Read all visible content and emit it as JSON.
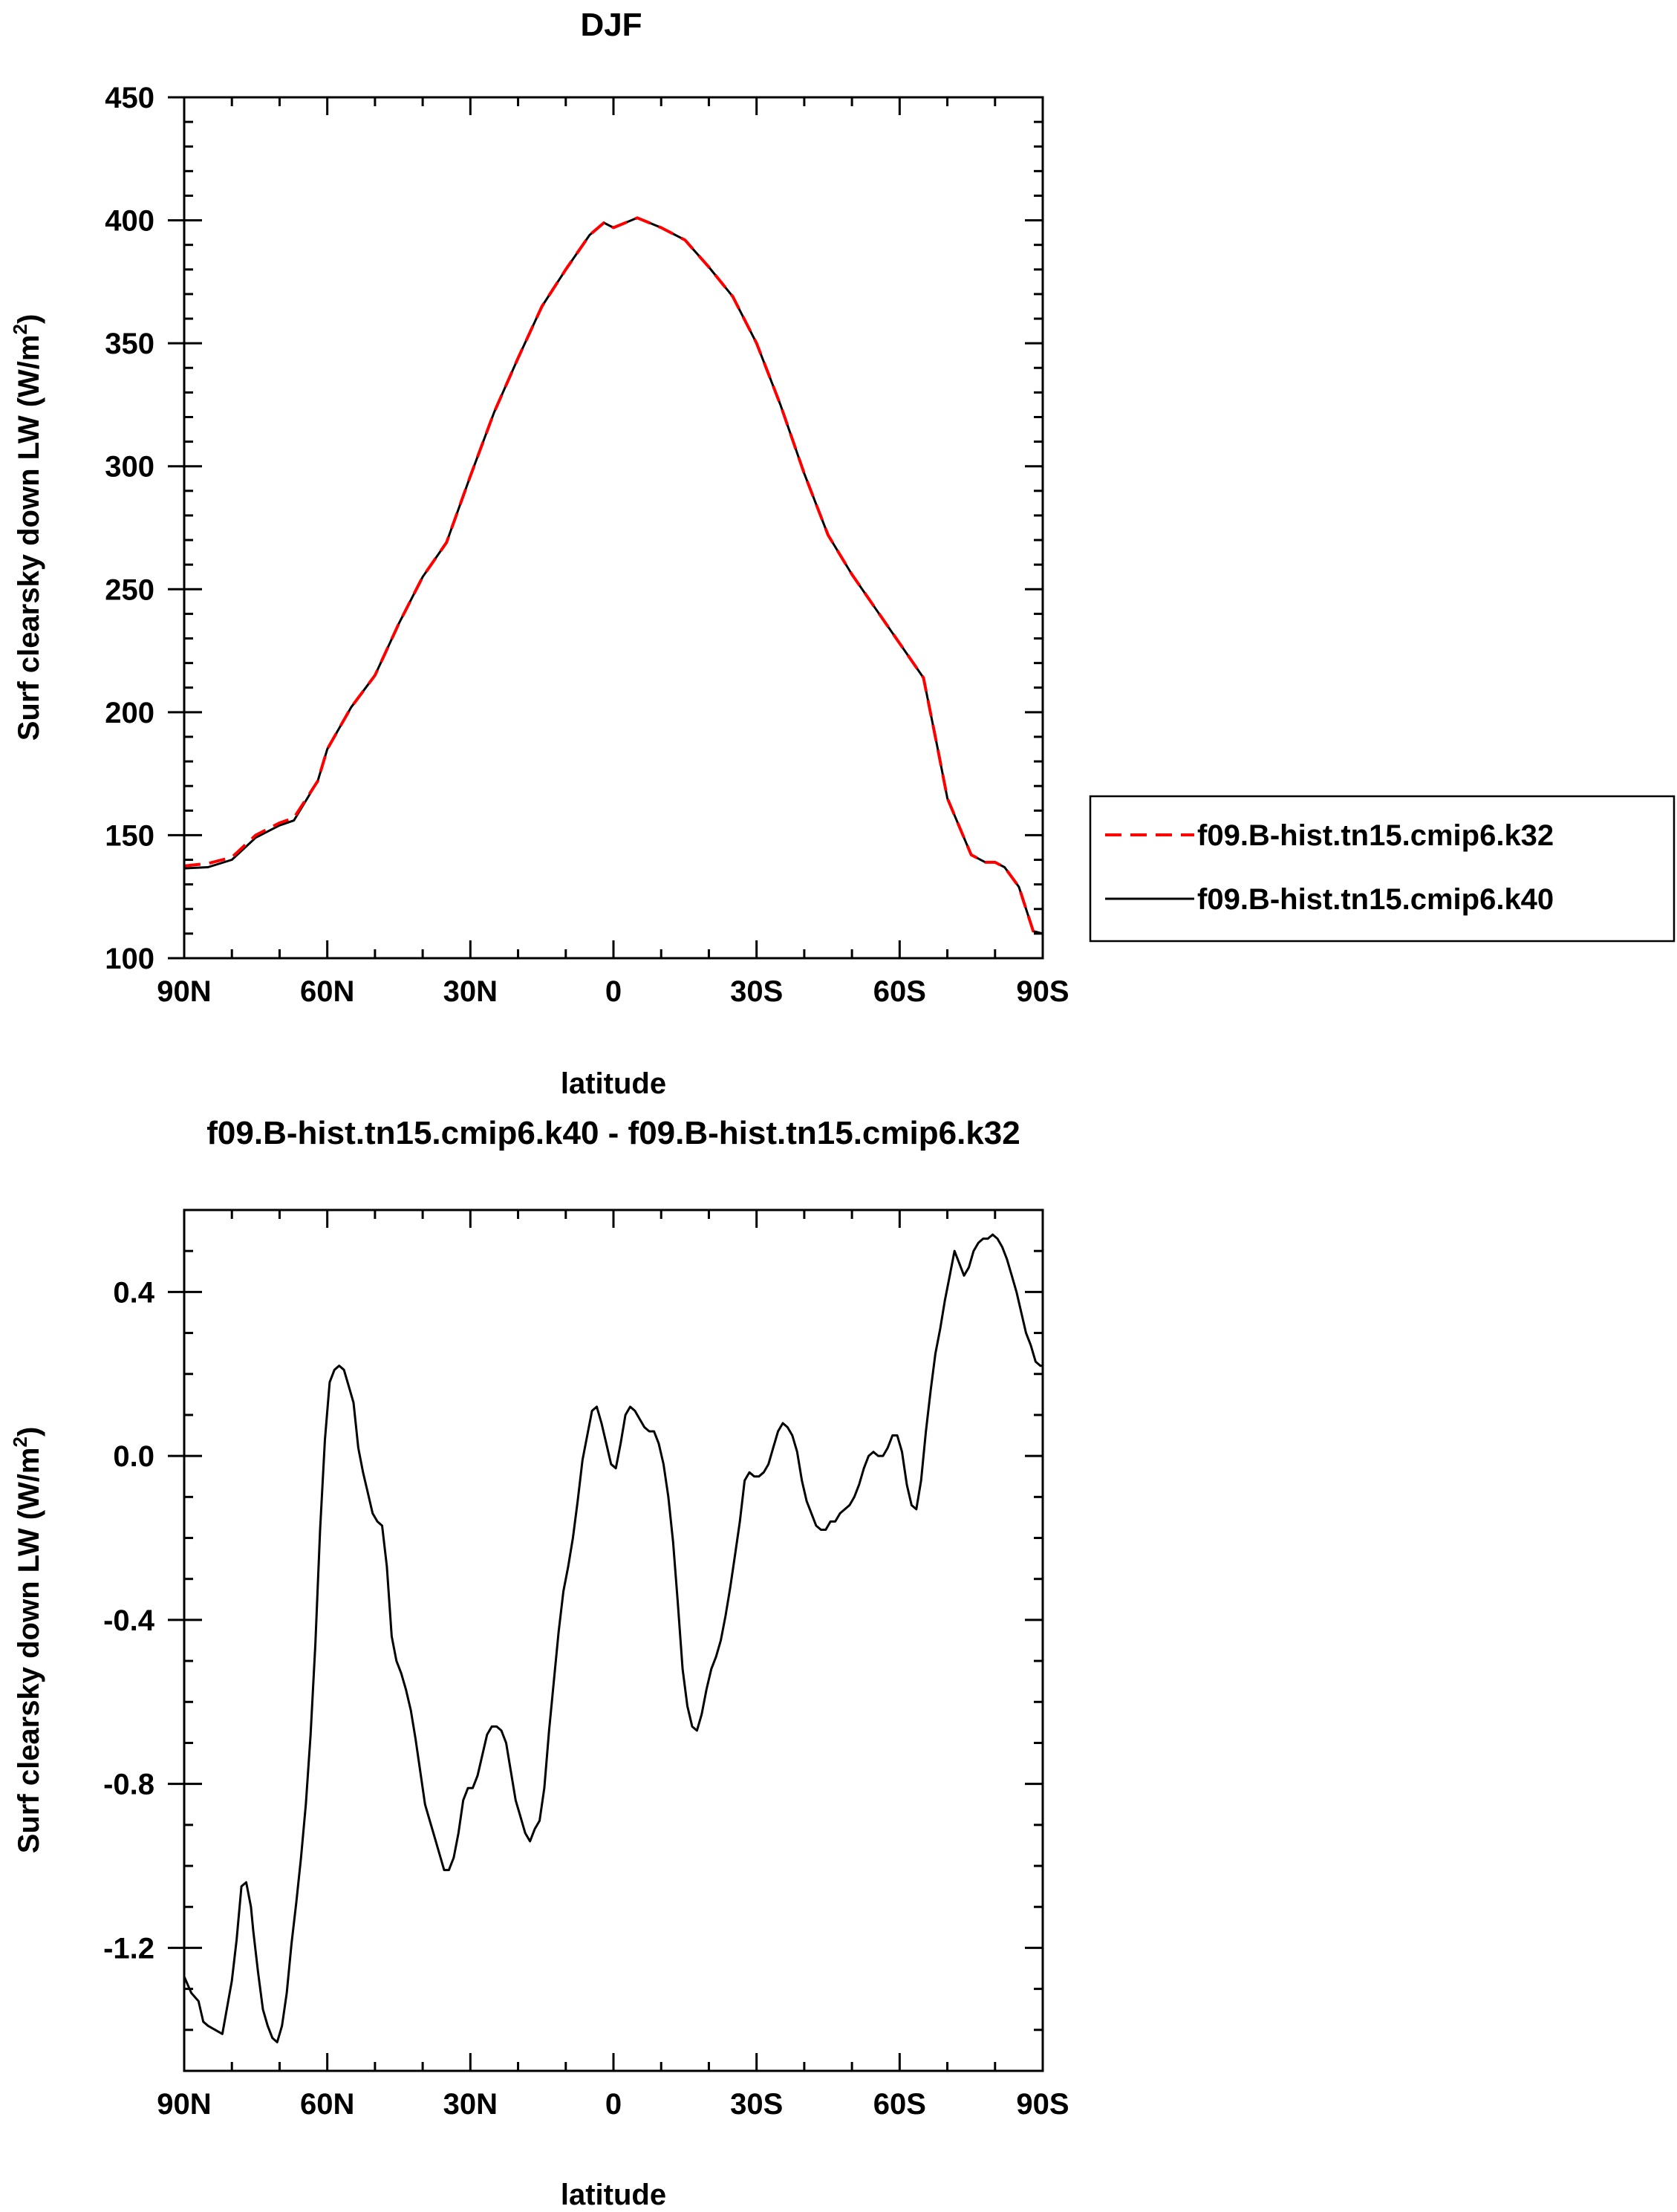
{
  "chart_data": [
    {
      "type": "line",
      "title": "DJF",
      "xlabel": "latitude",
      "ylabel": "Surf clearsky down LW (W/m",
      "ylabel_sup": "2",
      "ylabel_end": ")",
      "xlim": [
        90,
        -90
      ],
      "ylim": [
        100,
        450
      ],
      "x_ticks": [
        {
          "value": 90,
          "label": "90N"
        },
        {
          "value": 60,
          "label": "60N"
        },
        {
          "value": 30,
          "label": "30N"
        },
        {
          "value": 0,
          "label": "0"
        },
        {
          "value": -30,
          "label": "30S"
        },
        {
          "value": -60,
          "label": "60S"
        },
        {
          "value": -90,
          "label": "90S"
        }
      ],
      "y_ticks": [
        {
          "value": 100,
          "label": "100"
        },
        {
          "value": 150,
          "label": "150"
        },
        {
          "value": 200,
          "label": "200"
        },
        {
          "value": 250,
          "label": "250"
        },
        {
          "value": 300,
          "label": "300"
        },
        {
          "value": 350,
          "label": "350"
        },
        {
          "value": 400,
          "label": "400"
        },
        {
          "value": 450,
          "label": "450"
        }
      ],
      "legend": "outside-right",
      "series": [
        {
          "name": "f09.B-hist.tn15.cmip6.k32",
          "color": "#ff0000",
          "dash": "dashed",
          "x": [
            90,
            85,
            80,
            75,
            70,
            67,
            62,
            60,
            55,
            50,
            45,
            40,
            35,
            30,
            25,
            20,
            15,
            10,
            5,
            2,
            0,
            -5,
            -10,
            -15,
            -20,
            -25,
            -30,
            -35,
            -40,
            -45,
            -50,
            -55,
            -60,
            -65,
            -68,
            -70,
            -75,
            -78,
            -80,
            -82,
            -85,
            -88,
            -90
          ],
          "y": [
            137.5,
            138.5,
            141,
            150,
            155,
            157,
            172,
            185,
            202,
            215,
            236,
            255,
            269,
            296,
            322,
            344,
            365,
            380,
            394,
            399,
            397,
            401,
            397,
            392,
            381,
            369,
            350,
            325,
            297,
            272,
            256,
            242,
            228,
            214,
            185,
            165,
            142,
            139,
            139,
            137,
            129,
            111,
            110
          ]
        },
        {
          "name": "f09.B-hist.tn15.cmip6.k40",
          "color": "#000000",
          "dash": "solid",
          "x": [
            90,
            85,
            80,
            75,
            70,
            67,
            62,
            60,
            55,
            50,
            45,
            40,
            35,
            30,
            25,
            20,
            15,
            10,
            5,
            2,
            0,
            -5,
            -10,
            -15,
            -20,
            -25,
            -30,
            -35,
            -40,
            -45,
            -50,
            -55,
            -60,
            -65,
            -68,
            -70,
            -75,
            -78,
            -80,
            -82,
            -85,
            -88,
            -90
          ],
          "y": [
            136.5,
            137,
            140,
            149,
            154,
            156,
            172,
            185,
            202,
            215,
            236,
            255,
            269,
            296,
            322,
            344,
            365,
            380,
            394,
            399,
            397,
            401,
            397,
            392,
            381,
            369,
            350,
            325,
            297,
            272,
            256,
            242,
            228,
            214,
            185,
            165,
            142,
            139,
            139,
            137,
            129,
            111,
            110
          ]
        }
      ]
    },
    {
      "type": "line",
      "title": "f09.B-hist.tn15.cmip6.k40 - f09.B-hist.tn15.cmip6.k32",
      "xlabel": "latitude",
      "ylabel": "Surf clearsky down LW (W/m",
      "ylabel_sup": "2",
      "ylabel_end": ")",
      "xlim": [
        90,
        -90
      ],
      "ylim": [
        -1.5,
        0.6
      ],
      "x_ticks": [
        {
          "value": 90,
          "label": "90N"
        },
        {
          "value": 60,
          "label": "60N"
        },
        {
          "value": 30,
          "label": "30N"
        },
        {
          "value": 0,
          "label": "0"
        },
        {
          "value": -30,
          "label": "30S"
        },
        {
          "value": -60,
          "label": "60S"
        },
        {
          "value": -90,
          "label": "90S"
        }
      ],
      "y_ticks": [
        {
          "value": -1.2,
          "label": "-1.2"
        },
        {
          "value": -0.8,
          "label": "-0.8"
        },
        {
          "value": -0.4,
          "label": "-0.4"
        },
        {
          "value": 0.0,
          "label": "0.0"
        },
        {
          "value": 0.4,
          "label": "0.4"
        }
      ],
      "series": [
        {
          "color": "#000000",
          "dash": "solid",
          "x": [
            90,
            88.5,
            87,
            86,
            85,
            83.5,
            82,
            80,
            79,
            78,
            77,
            76,
            75.5,
            74.5,
            73.5,
            72.5,
            71.5,
            70.5,
            69.5,
            68.5,
            67.5,
            66.5,
            65.5,
            64.5,
            63.5,
            62.5,
            61.5,
            60.5,
            59.5,
            58.5,
            57.5,
            56.5,
            55.5,
            54.5,
            53.5,
            52.5,
            51.5,
            50.5,
            49.5,
            48.5,
            47.5,
            46.5,
            45.5,
            44.5,
            43.5,
            42.5,
            41.5,
            40.5,
            39.5,
            38.5,
            37.5,
            36.5,
            35.5,
            34.5,
            33.5,
            32.5,
            31.5,
            30.5,
            29.5,
            28.5,
            27.5,
            26.5,
            25.5,
            24.5,
            23.5,
            22.5,
            21.5,
            20.5,
            19.5,
            18.5,
            17.5,
            16.5,
            15.5,
            14.5,
            13.5,
            12.5,
            11.5,
            10.5,
            9.5,
            8.5,
            7.5,
            6.5,
            5.5,
            4.5,
            3.5,
            2.5,
            1.5,
            0.5,
            -0.5,
            -1.5,
            -2.5,
            -3.5,
            -4.5,
            -5.5,
            -6.5,
            -7.5,
            -8.5,
            -9.5,
            -10.5,
            -11.5,
            -12.5,
            -13.5,
            -14.5,
            -15.5,
            -16.5,
            -17.5,
            -18.5,
            -19.5,
            -20.5,
            -21.5,
            -22.5,
            -23.5,
            -24.5,
            -25.5,
            -26.5,
            -27.5,
            -28.5,
            -29.5,
            -30.5,
            -31.5,
            -32.5,
            -33.5,
            -34.5,
            -35.5,
            -36.5,
            -37.5,
            -38.5,
            -39.5,
            -40.5,
            -41.5,
            -42.5,
            -43.5,
            -44.5,
            -45.5,
            -46.5,
            -47.5,
            -48.5,
            -49.5,
            -50.5,
            -51.5,
            -52.5,
            -53.5,
            -54.5,
            -55.5,
            -56.5,
            -57.5,
            -58.5,
            -59.5,
            -60.5,
            -61.5,
            -62.5,
            -63.5,
            -64.5,
            -65.5,
            -66.5,
            -67.5,
            -68.5,
            -69.5,
            -70.5,
            -71.5,
            -72.5,
            -73.5,
            -74.5,
            -75.5,
            -76.5,
            -77.5,
            -78.5,
            -79.5,
            -80.5,
            -81.5,
            -82.5,
            -83.5,
            -84.5,
            -85.5,
            -86.5,
            -87.5,
            -88.5,
            -89.5,
            -90
          ],
          "y": [
            -1.27,
            -1.31,
            -1.33,
            -1.38,
            -1.39,
            -1.4,
            -1.41,
            -1.28,
            -1.18,
            -1.05,
            -1.04,
            -1.1,
            -1.16,
            -1.26,
            -1.35,
            -1.39,
            -1.42,
            -1.43,
            -1.39,
            -1.31,
            -1.19,
            -1.09,
            -0.98,
            -0.85,
            -0.68,
            -0.46,
            -0.18,
            0.04,
            0.18,
            0.21,
            0.22,
            0.21,
            0.17,
            0.13,
            0.02,
            -0.04,
            -0.09,
            -0.14,
            -0.16,
            -0.17,
            -0.27,
            -0.44,
            -0.5,
            -0.53,
            -0.57,
            -0.62,
            -0.69,
            -0.77,
            -0.85,
            -0.89,
            -0.93,
            -0.97,
            -1.01,
            -1.01,
            -0.98,
            -0.92,
            -0.84,
            -0.81,
            -0.81,
            -0.78,
            -0.73,
            -0.68,
            -0.66,
            -0.66,
            -0.67,
            -0.7,
            -0.77,
            -0.84,
            -0.88,
            -0.92,
            -0.94,
            -0.91,
            -0.89,
            -0.81,
            -0.67,
            -0.55,
            -0.43,
            -0.33,
            -0.27,
            -0.2,
            -0.11,
            -0.01,
            0.05,
            0.11,
            0.12,
            0.08,
            0.03,
            -0.02,
            -0.03,
            0.03,
            0.1,
            0.12,
            0.11,
            0.09,
            0.07,
            0.06,
            0.06,
            0.03,
            -0.02,
            -0.1,
            -0.21,
            -0.36,
            -0.52,
            -0.61,
            -0.66,
            -0.67,
            -0.63,
            -0.57,
            -0.52,
            -0.49,
            -0.45,
            -0.39,
            -0.32,
            -0.24,
            -0.16,
            -0.06,
            -0.04,
            -0.05,
            -0.05,
            -0.04,
            -0.02,
            0.02,
            0.06,
            0.08,
            0.07,
            0.05,
            0.01,
            -0.06,
            -0.11,
            -0.14,
            -0.17,
            -0.18,
            -0.18,
            -0.16,
            -0.16,
            -0.14,
            -0.13,
            -0.12,
            -0.1,
            -0.07,
            -0.03,
            0.0,
            0.01,
            0.0,
            0.0,
            0.02,
            0.05,
            0.05,
            0.01,
            -0.07,
            -0.12,
            -0.13,
            -0.06,
            0.06,
            0.16,
            0.25,
            0.31,
            0.38,
            0.44,
            0.5,
            0.47,
            0.44,
            0.46,
            0.5,
            0.52,
            0.53,
            0.53,
            0.54,
            0.53,
            0.51,
            0.48,
            0.44,
            0.4,
            0.35,
            0.3,
            0.27,
            0.23,
            0.22,
            0.22
          ]
        }
      ]
    }
  ]
}
